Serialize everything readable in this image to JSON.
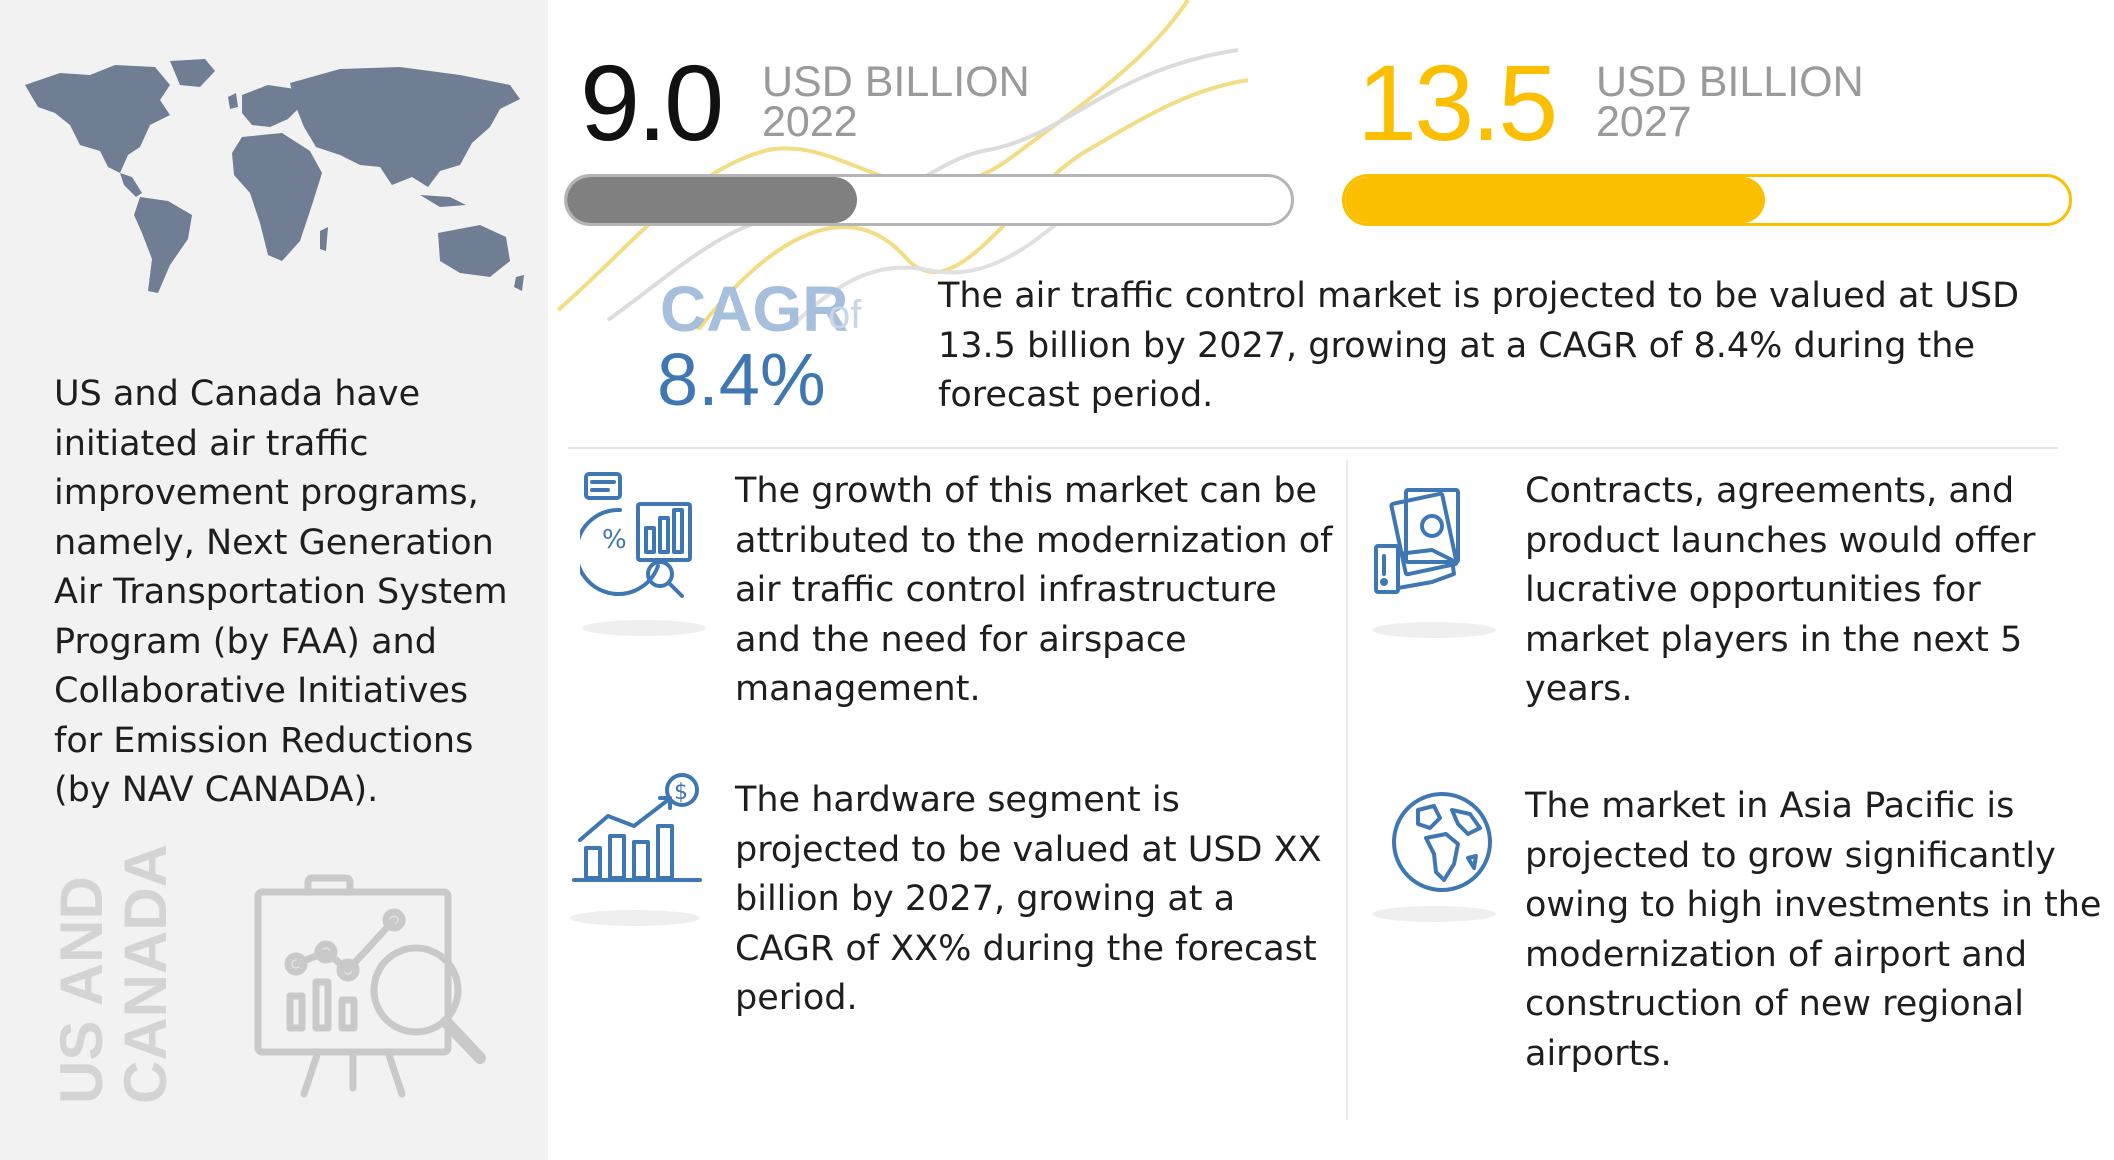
{
  "left_panel": {
    "description": "US and Canada have initiated air traffic improvement programs, namely, Next Generation Air Transportation System Program (by FAA) and Collaborative Initiatives for Emission Reductions (by NAV CANADA).",
    "region_line1": "US AND",
    "region_line2": "CANADA",
    "icons": [
      "world-map-icon",
      "presentation-board-icon"
    ]
  },
  "stats": [
    {
      "value": "9.0",
      "unit": "USD BILLION",
      "year": "2022",
      "fill_fraction": 0.4,
      "color": "#808080"
    },
    {
      "value": "13.5",
      "unit": "USD BILLION",
      "year": "2027",
      "fill_fraction": 0.58,
      "color": "#fbbf00"
    }
  ],
  "cagr": {
    "label": "CAGR",
    "of": "of",
    "value": "8.4%",
    "color": "#3f77b2"
  },
  "summary": "The air traffic control market is projected to be valued at USD 13.5 billion by 2027, growing at a CAGR of 8.4% during the forecast period.",
  "insights": [
    {
      "icon": "analytics-chart-icon",
      "text": "The growth of this market can be attributed to the modernization of air traffic control infrastructure and the need for airspace management."
    },
    {
      "icon": "money-hand-icon",
      "text": "Contracts, agreements, and product launches would offer lucrative opportunities for market players in the next 5 years."
    },
    {
      "icon": "growth-bars-icon",
      "text": "The hardware segment is projected to be valued at USD XX billion by 2027, growing at a CAGR of XX% during the forecast period."
    },
    {
      "icon": "globe-icon",
      "text": "The market in Asia Pacific is projected to grow significantly owing to high investments in the modernization of airport and construction of new regional airports."
    }
  ],
  "colors": {
    "accent_blue": "#3f77b2",
    "accent_yellow": "#fbbf00",
    "panel_grey": "#f2f2f2"
  }
}
